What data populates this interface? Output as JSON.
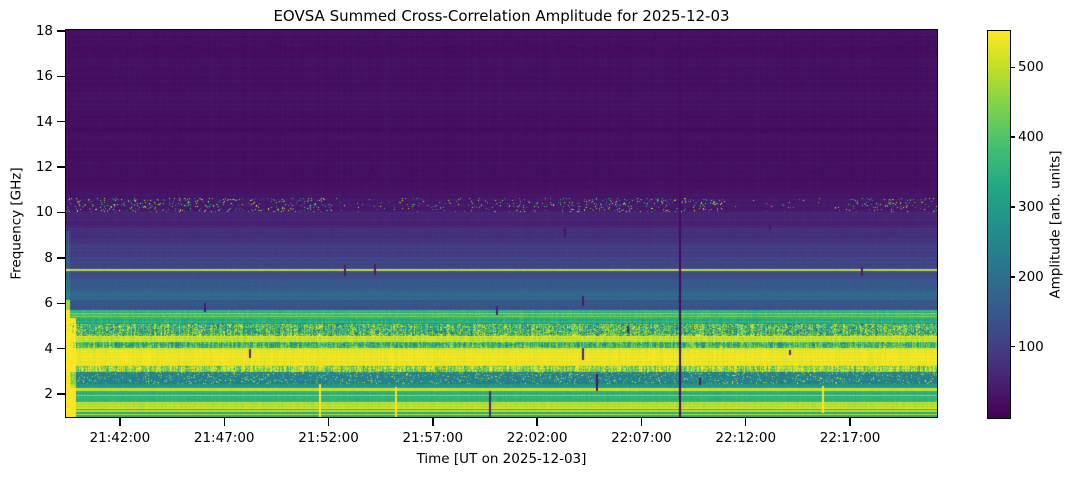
{
  "figure": {
    "kind": "matplotlib-spectrogram"
  },
  "chart_data": {
    "type": "heatmap",
    "title": "EOVSA Summed Cross-Correlation Amplitude for 2025-12-03",
    "xlabel": "Time [UT on 2025-12-03]",
    "ylabel": "Frequency [GHz]",
    "colormap": "viridis",
    "grid": false,
    "legend": "none (colorbar only)",
    "x_ticks": [
      "21:42:00",
      "21:47:00",
      "21:52:00",
      "21:57:00",
      "22:02:00",
      "22:07:00",
      "22:12:00",
      "22:17:00"
    ],
    "time_start": "21:39:25",
    "time_end": "22:21:10",
    "y_ticks": [
      18,
      16,
      14,
      12,
      10,
      8,
      6,
      4,
      2
    ],
    "freq_range_ghz": [
      0.99,
      18.04
    ],
    "colorbar": {
      "label": "Amplitude [arb. units]",
      "ticks": [
        500,
        400,
        300,
        200,
        100
      ],
      "vmin": -2,
      "vmax": 552
    },
    "viridis_stops": [
      [
        0.0,
        "#440154"
      ],
      [
        0.1,
        "#482475"
      ],
      [
        0.2,
        "#414487"
      ],
      [
        0.3,
        "#355f8d"
      ],
      [
        0.4,
        "#2a788e"
      ],
      [
        0.5,
        "#21918c"
      ],
      [
        0.6,
        "#22a884"
      ],
      [
        0.7,
        "#44bf70"
      ],
      [
        0.8,
        "#7ad151"
      ],
      [
        0.9,
        "#bddf26"
      ],
      [
        1.0,
        "#fde725"
      ]
    ],
    "bands": [
      {
        "f1": 18.04,
        "f2": 11.0,
        "base": 22,
        "rv": 7,
        "cv": 4
      },
      {
        "f1": 11.0,
        "f2": 10.65,
        "base": 30,
        "rv": 6,
        "cv": 4
      },
      {
        "f1": 10.65,
        "f2": 10.0,
        "base": 36,
        "rv": 8,
        "cv": 5,
        "speckle": {
          "density": 0.075,
          "amp_min": 200,
          "amp_max": 555,
          "clusters": [
            [
              66,
              332,
              1.35
            ],
            [
              332,
              392,
              0.12
            ],
            [
              392,
              562,
              0.65
            ],
            [
              562,
              725,
              1.2
            ],
            [
              725,
              838,
              0.22
            ],
            [
              838,
              937,
              0.9
            ]
          ]
        }
      },
      {
        "f1": 10.0,
        "f2": 9.35,
        "base": 52,
        "rv": 10,
        "cv": 4
      },
      {
        "f1": 9.35,
        "f2": 8.65,
        "base": 75,
        "rv": 12,
        "cv": 4
      },
      {
        "f1": 8.65,
        "f2": 8.05,
        "base": 96,
        "rv": 12,
        "cv": 5
      },
      {
        "f1": 8.05,
        "f2": 7.5,
        "base": 114,
        "rv": 10,
        "cv": 5
      },
      {
        "f1": 7.5,
        "f2": 7.42,
        "base": 508,
        "rv": 18,
        "cv": 14
      },
      {
        "f1": 7.42,
        "f2": 7.05,
        "base": 128,
        "rv": 12,
        "cv": 5
      },
      {
        "f1": 7.05,
        "f2": 6.6,
        "base": 152,
        "rv": 14,
        "cv": 6
      },
      {
        "f1": 6.6,
        "f2": 6.15,
        "base": 186,
        "rv": 16,
        "cv": 7
      },
      {
        "f1": 6.15,
        "f2": 5.7,
        "base": 142,
        "rv": 10,
        "cv": 6
      },
      {
        "f1": 5.7,
        "f2": 5.36,
        "base": 430,
        "rv": 115,
        "cv": 22
      },
      {
        "f1": 5.36,
        "f2": 5.08,
        "base": 330,
        "rv": 40,
        "cv": 28
      },
      {
        "f1": 5.08,
        "f2": 4.55,
        "base": 390,
        "rv": 45,
        "cv": 135,
        "speckle": {
          "density": 0.28,
          "amp_min": 130,
          "amp_max": 555
        }
      },
      {
        "f1": 4.55,
        "f2": 4.3,
        "base": 505,
        "rv": 25,
        "cv": 22
      },
      {
        "f1": 4.3,
        "f2": 4.03,
        "base": 368,
        "rv": 35,
        "cv": 115
      },
      {
        "f1": 4.03,
        "f2": 3.24,
        "base": 532,
        "rv": 16,
        "cv": 14
      },
      {
        "f1": 3.24,
        "f2": 2.97,
        "base": 458,
        "rv": 28,
        "cv": 115
      },
      {
        "f1": 2.97,
        "f2": 2.45,
        "base": 240,
        "rv": 14,
        "cv": 20,
        "speckle": {
          "density": 0.09,
          "amp_min": 350,
          "amp_max": 555
        }
      },
      {
        "f1": 2.45,
        "f2": 2.28,
        "base": 310,
        "rv": 28,
        "cv": 18
      },
      {
        "f1": 2.28,
        "f2": 2.13,
        "base": 512,
        "rv": 16,
        "cv": 12
      },
      {
        "f1": 2.13,
        "f2": 1.67,
        "base": 342,
        "rv": 28,
        "cv": 16
      },
      {
        "f1": 1.67,
        "f2": 1.35,
        "base": 505,
        "rv": 35,
        "cv": 14
      },
      {
        "f1": 1.35,
        "f2": 0.99,
        "base": 322,
        "rv": 25,
        "cv": 16
      }
    ],
    "hlines": [
      {
        "f": 1.95,
        "amp": 470,
        "hw": 0.025
      },
      {
        "f": 1.25,
        "amp": 500,
        "hw": 0.03
      },
      {
        "f": 1.1,
        "amp": 515,
        "hw": 0.03
      }
    ],
    "vlines": [
      {
        "x": 680,
        "f1": 18.04,
        "f2": 0.99,
        "amp": 14,
        "w": 1.6,
        "kind": "dropout"
      },
      {
        "x": 320,
        "f1": 2.45,
        "f2": 0.99,
        "amp": 548,
        "w": 2.0,
        "kind": "bright"
      },
      {
        "x": 396,
        "f1": 2.3,
        "f2": 0.99,
        "amp": 544,
        "w": 1.5,
        "kind": "bright"
      },
      {
        "x": 823,
        "f1": 2.35,
        "f2": 1.15,
        "amp": 548,
        "w": 2.0,
        "kind": "bright"
      },
      {
        "x": 130,
        "f1": 18.0,
        "f2": 17.6,
        "amp": 12,
        "w": 1.5,
        "kind": "dropout"
      },
      {
        "x": 375,
        "f1": 18.0,
        "f2": 17.55,
        "amp": 12,
        "w": 1.5,
        "kind": "dropout"
      },
      {
        "x": 655,
        "f1": 17.95,
        "f2": 17.6,
        "amp": 12,
        "w": 1.5,
        "kind": "dropout"
      },
      {
        "x": 372,
        "f1": 12.15,
        "f2": 11.7,
        "amp": 12,
        "w": 1.5,
        "kind": "dropout"
      },
      {
        "x": 565,
        "f1": 9.35,
        "f2": 8.9,
        "amp": 30,
        "w": 1.5,
        "kind": "dropout"
      },
      {
        "x": 770,
        "f1": 9.45,
        "f2": 9.25,
        "amp": 30,
        "w": 1.5,
        "kind": "dropout"
      },
      {
        "x": 345,
        "f1": 7.7,
        "f2": 7.2,
        "amp": 40,
        "w": 1.5,
        "kind": "dropout"
      },
      {
        "x": 375,
        "f1": 7.75,
        "f2": 7.25,
        "amp": 40,
        "w": 1.5,
        "kind": "dropout"
      },
      {
        "x": 862,
        "f1": 7.6,
        "f2": 7.2,
        "amp": 40,
        "w": 1.5,
        "kind": "dropout"
      },
      {
        "x": 583,
        "f1": 6.3,
        "f2": 5.9,
        "amp": 40,
        "w": 1.5,
        "kind": "dropout"
      },
      {
        "x": 205,
        "f1": 6.0,
        "f2": 5.6,
        "amp": 40,
        "w": 1.5,
        "kind": "dropout"
      },
      {
        "x": 497,
        "f1": 5.9,
        "f2": 5.5,
        "amp": 50,
        "w": 1.5,
        "kind": "dropout"
      },
      {
        "x": 628,
        "f1": 5.0,
        "f2": 4.7,
        "amp": 60,
        "w": 1.5,
        "kind": "dropout"
      },
      {
        "x": 250,
        "f1": 4.0,
        "f2": 3.6,
        "amp": 60,
        "w": 1.5,
        "kind": "dropout"
      },
      {
        "x": 583,
        "f1": 4.05,
        "f2": 3.5,
        "amp": 60,
        "w": 1.5,
        "kind": "dropout"
      },
      {
        "x": 790,
        "f1": 3.95,
        "f2": 3.7,
        "amp": 60,
        "w": 1.5,
        "kind": "dropout"
      },
      {
        "x": 597,
        "f1": 2.9,
        "f2": 2.15,
        "amp": 25,
        "w": 1.8,
        "kind": "dropout"
      },
      {
        "x": 700,
        "f1": 2.7,
        "f2": 2.4,
        "amp": 40,
        "w": 1.5,
        "kind": "dropout"
      },
      {
        "x": 490,
        "f1": 2.15,
        "f2": 0.99,
        "amp": 60,
        "w": 1.5,
        "kind": "dropout"
      }
    ],
    "left_edge_strips": [
      {
        "x0": 66,
        "x1": 70,
        "f1": 6.15,
        "f2": 0.99,
        "boost": 330
      },
      {
        "x0": 70,
        "x1": 76,
        "f1": 5.36,
        "f2": 0.99,
        "boost": 210
      },
      {
        "x0": 66,
        "x1": 70,
        "f1": 9.2,
        "f2": 6.15,
        "boost": 55
      }
    ]
  }
}
